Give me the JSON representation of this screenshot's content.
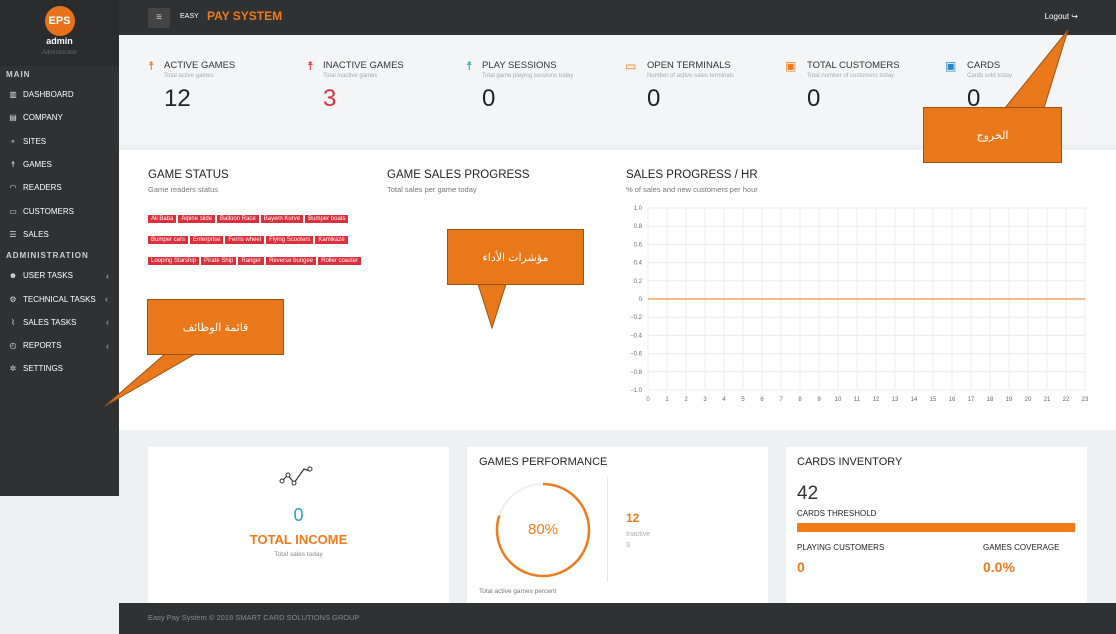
{
  "sidebar": {
    "logo": "EPS",
    "username": "admin",
    "role": "Administrator",
    "main_label": "MAIN",
    "admin_label": "ADMINISTRATION",
    "main_items": [
      {
        "label": "DASHBOARD",
        "icon": "chart-icon"
      },
      {
        "label": "COMPANY",
        "icon": "building-icon"
      },
      {
        "label": "SITES",
        "icon": "sitemap-icon"
      },
      {
        "label": "GAMES",
        "icon": "person-icon"
      },
      {
        "label": "READERS",
        "icon": "wifi-icon"
      },
      {
        "label": "CUSTOMERS",
        "icon": "id-card-icon"
      },
      {
        "label": "SALES",
        "icon": "list-icon"
      }
    ],
    "admin_items": [
      {
        "label": "USER TASKS",
        "icon": "users-icon"
      },
      {
        "label": "TECHNICAL TASKS",
        "icon": "cogs-icon"
      },
      {
        "label": "SALES TASKS",
        "icon": "line-chart-icon"
      },
      {
        "label": "REPORTS",
        "icon": "reports-icon"
      },
      {
        "label": "SETTINGS",
        "icon": "gear-icon"
      }
    ]
  },
  "header": {
    "brand_small": "EASY",
    "brand_big": "PAY SYSTEM",
    "logout": "Logout ↪"
  },
  "stats": [
    {
      "title": "ACTIVE GAMES",
      "sub": "Total active games",
      "value": "12",
      "color": "#f17a1a",
      "value_color": "#222222"
    },
    {
      "title": "INACTIVE GAMES",
      "sub": "Total inactive games",
      "value": "3",
      "color": "#d9303b",
      "value_color": "#d9303b"
    },
    {
      "title": "PLAY SESSIONS",
      "sub": "Total game playing sessions today",
      "value": "0",
      "color": "#2aa3c7",
      "value_color": "#222222"
    },
    {
      "title": "OPEN TERMINALS",
      "sub": "Number of active sales terminals",
      "value": "0",
      "color": "#f17a1a",
      "value_color": "#222222"
    },
    {
      "title": "TOTAL CUSTOMERS",
      "sub": "Total number of customers today",
      "value": "0",
      "color": "#f17a1a",
      "value_color": "#222222"
    },
    {
      "title": "CARDS",
      "sub": "Cards sold today",
      "value": "0",
      "color": "#2a86c7",
      "value_color": "#222222"
    }
  ],
  "game_status": {
    "title": "GAME STATUS",
    "subtitle": "Game readers status",
    "tags": [
      "Ali Baba",
      "Alpine slide",
      "Balloon Race",
      "Bayern Kurve",
      "Bumper boats",
      "Bumper cars",
      "Enterprise",
      "Ferris wheel",
      "Flying Scooters",
      "Kamikaze",
      "Looping Starship",
      "Pirate Ship",
      "Ranger",
      "Reverse bungee",
      "Roller coaster"
    ]
  },
  "game_sales": {
    "title": "GAME SALES PROGRESS",
    "subtitle": "Total sales per game today"
  },
  "sales_progress": {
    "title": "SALES PROGRESS / HR",
    "subtitle": "% of sales and new customers per hour"
  },
  "chart_data": {
    "type": "line",
    "title": "SALES PROGRESS / HR",
    "x": [
      0,
      1,
      2,
      3,
      4,
      5,
      6,
      7,
      8,
      9,
      10,
      11,
      12,
      13,
      14,
      15,
      16,
      17,
      18,
      19,
      20,
      21,
      22,
      23
    ],
    "series": [
      {
        "values": [
          0,
          0,
          0,
          0,
          0,
          0,
          0,
          0,
          0,
          0,
          0,
          0,
          0,
          0,
          0,
          0,
          0,
          0,
          0,
          0,
          0,
          0,
          0,
          0
        ]
      }
    ],
    "y_ticks": [
      "1.0",
      "0.8",
      "0.6",
      "0.4",
      "0.2",
      "0",
      "−0.2",
      "−0.4",
      "−0.6",
      "−0.8",
      "−1.0"
    ],
    "ylim": [
      -1,
      1
    ],
    "xlim": [
      0,
      23
    ],
    "grid": true,
    "line_color": "#f17a1a"
  },
  "income": {
    "value": "0",
    "label": "TOTAL INCOME",
    "sub": "Total sales today"
  },
  "performance": {
    "title": "GAMES PERFORMANCE",
    "percent": "80%",
    "percent_value": 80,
    "active": "12",
    "inactive_label": "Inactive",
    "inactive": "3",
    "footnote": "Total active games percent"
  },
  "inventory": {
    "title": "CARDS INVENTORY",
    "count": "42",
    "threshold_label": "CARDS THRESHOLD",
    "threshold_fill": 1.0,
    "playing_label": "PLAYING CUSTOMERS",
    "playing_value": "0",
    "coverage_label": "GAMES COVERAGE",
    "coverage_value": "0.0%"
  },
  "footer": "Easy Pay System © 2018 SMART CARD SOLUTIONS GROUP",
  "annotations": {
    "logout_callout": "الخروج",
    "indicators_callout": "مؤشرات الأداء",
    "menu_callout": "قائمة الوظائف"
  }
}
